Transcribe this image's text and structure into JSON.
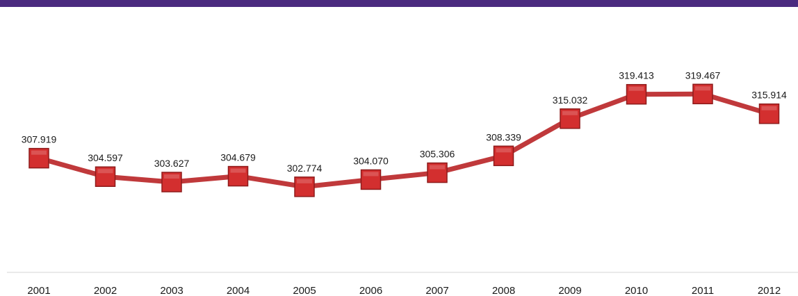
{
  "colors": {
    "top_bar": "#4b2a7f",
    "line": "#c0393b",
    "marker_fill": "#d32f2f",
    "marker_edge": "#8e1b1b",
    "axis": "#d6d6d6"
  },
  "chart_data": {
    "type": "line",
    "title": "",
    "xlabel": "",
    "ylabel": "",
    "categories": [
      "2001",
      "2002",
      "2003",
      "2004",
      "2005",
      "2006",
      "2007",
      "2008",
      "2009",
      "2010",
      "2011",
      "2012"
    ],
    "series": [
      {
        "values": [
          307.919,
          304.597,
          303.627,
          304.679,
          302.774,
          304.07,
          305.306,
          308.339,
          315.032,
          319.413,
          319.467,
          315.914
        ],
        "labels": [
          "307.919",
          "304.597",
          "303.627",
          "304.679",
          "302.774",
          "304.070",
          "305.306",
          "308.339",
          "315.032",
          "319.413",
          "319.467",
          "315.914"
        ]
      }
    ],
    "ylim": [
      290,
      325
    ],
    "grid": false,
    "legend": "none"
  }
}
